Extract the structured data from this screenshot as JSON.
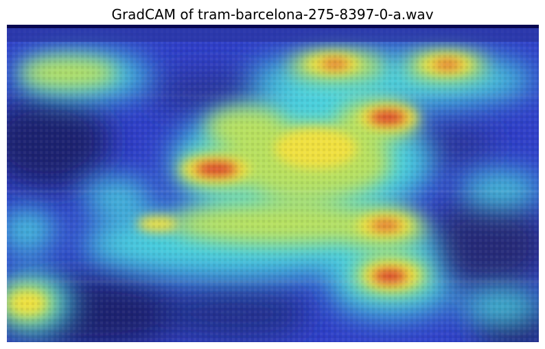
{
  "figure": {
    "title": "GradCAM of tram-barcelona-275-8397-0-a.wav"
  },
  "colors": {
    "background": "#ffffff",
    "top_band": "#080850",
    "base_dark": "#1a2a88",
    "base_blue": "#3548d8",
    "cyan": "#4ad7e2",
    "yellow": "#e8e84a",
    "red": "#d82a2a"
  }
}
